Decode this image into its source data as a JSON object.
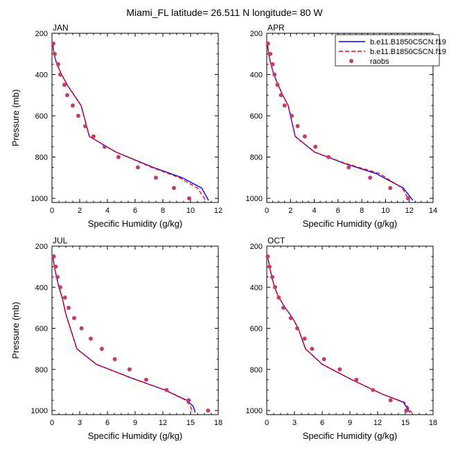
{
  "figure": {
    "title": "Miami_FL  latitude= 26.511 N longitude= 80 W"
  },
  "legend": {
    "placement": "top-right (inside APR panel)",
    "entries": [
      {
        "label": "b.e11.B1850C5CN.f19",
        "color": "#0000ff",
        "style": "solid"
      },
      {
        "label": "b.e11.B1850C5CN.f19",
        "color": "#ff0000",
        "style": "dashed"
      },
      {
        "label": "raobs",
        "color": "#c0406a",
        "style": "dot"
      }
    ]
  },
  "chart_data": [
    {
      "type": "line",
      "title": "JAN",
      "xlabel": "Specific Humidity (g/kg)",
      "ylabel": "Pressure (mb)",
      "xlim": [
        0,
        12
      ],
      "ylim": [
        1020,
        200
      ],
      "y_inverted": true,
      "xticks": [
        0,
        2,
        4,
        6,
        8,
        10,
        12
      ],
      "yticks": [
        200,
        400,
        600,
        800,
        1000
      ],
      "series": [
        {
          "name": "b.e11.B1850C5CN.f19",
          "color": "#0000ff",
          "style": "solid",
          "x": [
            0.05,
            0.15,
            0.35,
            0.7,
            1.1,
            1.6,
            2.1,
            2.7,
            4.6,
            7.3,
            9.4,
            10.8,
            11.3
          ],
          "y": [
            250,
            300,
            350,
            400,
            450,
            500,
            550,
            700,
            775,
            850,
            900,
            950,
            1010
          ]
        },
        {
          "name": "b.e11.B1850C5CN.f19",
          "color": "#ff0000",
          "style": "dashed",
          "x": [
            0.05,
            0.15,
            0.35,
            0.7,
            1.1,
            1.6,
            2.1,
            2.7,
            4.6,
            7.2,
            9.2,
            10.5,
            11.1
          ],
          "y": [
            250,
            300,
            350,
            400,
            450,
            500,
            550,
            700,
            775,
            850,
            900,
            950,
            1010
          ]
        },
        {
          "name": "raobs",
          "color": "#c0406a",
          "style": "dot",
          "x": [
            0.1,
            0.2,
            0.45,
            0.6,
            0.9,
            1.1,
            1.5,
            1.9,
            2.4,
            3.0,
            3.8,
            4.8,
            6.2,
            7.5,
            8.8,
            9.9
          ],
          "y": [
            250,
            300,
            350,
            400,
            450,
            500,
            550,
            600,
            650,
            700,
            750,
            800,
            850,
            900,
            950,
            1000
          ]
        }
      ]
    },
    {
      "type": "line",
      "title": "APR",
      "xlabel": "Specific Humidity (g/kg)",
      "ylabel": "",
      "xlim": [
        0,
        14
      ],
      "ylim": [
        1020,
        200
      ],
      "y_inverted": true,
      "xticks": [
        0,
        2,
        4,
        6,
        8,
        10,
        12,
        14
      ],
      "yticks": [
        200,
        400,
        600,
        800,
        1000
      ],
      "series": [
        {
          "name": "b.e11.B1850C5CN.f19",
          "color": "#0000ff",
          "style": "solid",
          "x": [
            0.05,
            0.15,
            0.35,
            0.6,
            0.95,
            1.35,
            1.8,
            2.4,
            4.0,
            6.5,
            9.2,
            11.5,
            12.3
          ],
          "y": [
            250,
            300,
            350,
            400,
            450,
            500,
            550,
            700,
            775,
            830,
            880,
            950,
            1010
          ]
        },
        {
          "name": "b.e11.B1850C5CN.f19",
          "color": "#ff0000",
          "style": "dashed",
          "x": [
            0.05,
            0.15,
            0.35,
            0.6,
            0.95,
            1.35,
            1.8,
            2.4,
            4.0,
            6.6,
            9.5,
            11.4,
            12.0
          ],
          "y": [
            250,
            300,
            350,
            400,
            450,
            500,
            550,
            700,
            775,
            830,
            880,
            950,
            1010
          ]
        },
        {
          "name": "raobs",
          "color": "#c0406a",
          "style": "dot",
          "x": [
            0.1,
            0.3,
            0.5,
            0.65,
            0.9,
            1.2,
            1.5,
            2.1,
            2.6,
            3.2,
            4.1,
            5.2,
            6.9,
            8.7,
            10.4,
            11.9
          ],
          "y": [
            250,
            300,
            350,
            400,
            450,
            500,
            550,
            600,
            650,
            700,
            750,
            800,
            850,
            900,
            950,
            1000
          ]
        }
      ]
    },
    {
      "type": "line",
      "title": "JUL",
      "xlabel": "Specific Humidity (g/kg)",
      "ylabel": "Pressure (mb)",
      "xlim": [
        0,
        18
      ],
      "ylim": [
        1020,
        200
      ],
      "y_inverted": true,
      "xticks": [
        0,
        3,
        6,
        9,
        12,
        15,
        18
      ],
      "yticks": [
        200,
        400,
        600,
        800,
        1000
      ],
      "series": [
        {
          "name": "b.e11.B1850C5CN.f19",
          "color": "#0000ff",
          "style": "solid",
          "x": [
            0.1,
            0.25,
            0.5,
            0.75,
            1.1,
            1.5,
            2.7,
            4.8,
            8.5,
            12.2,
            14.6,
            15.3,
            15.5
          ],
          "y": [
            250,
            300,
            350,
            400,
            450,
            530,
            700,
            775,
            840,
            900,
            950,
            980,
            1010
          ]
        },
        {
          "name": "b.e11.B1850C5CN.f19",
          "color": "#ff0000",
          "style": "dashed",
          "x": [
            0.1,
            0.25,
            0.5,
            0.75,
            1.1,
            1.5,
            2.7,
            4.8,
            8.5,
            12.2,
            14.5,
            15.0,
            15.2
          ],
          "y": [
            250,
            300,
            350,
            400,
            450,
            530,
            700,
            775,
            840,
            900,
            950,
            980,
            1010
          ]
        },
        {
          "name": "raobs",
          "color": "#c0406a",
          "style": "dot",
          "x": [
            0.2,
            0.4,
            0.6,
            0.9,
            1.4,
            1.8,
            2.4,
            3.2,
            4.2,
            5.4,
            6.8,
            8.4,
            10.2,
            12.4,
            14.8,
            16.9
          ],
          "y": [
            250,
            300,
            350,
            400,
            450,
            500,
            550,
            600,
            650,
            700,
            750,
            800,
            850,
            900,
            950,
            1000
          ]
        }
      ]
    },
    {
      "type": "line",
      "title": "OCT",
      "xlabel": "Specific Humidity (g/kg)",
      "ylabel": "",
      "xlim": [
        0,
        18
      ],
      "ylim": [
        1020,
        200
      ],
      "y_inverted": true,
      "xticks": [
        0,
        3,
        6,
        9,
        12,
        15,
        18
      ],
      "yticks": [
        200,
        400,
        600,
        800,
        1000
      ],
      "series": [
        {
          "name": "b.e11.B1850C5CN.f19",
          "color": "#0000ff",
          "style": "solid",
          "x": [
            0.1,
            0.3,
            0.55,
            0.85,
            1.3,
            2.0,
            2.8,
            3.4,
            4.2,
            6.0,
            9.2,
            12.5,
            14.8,
            15.5
          ],
          "y": [
            250,
            300,
            350,
            400,
            450,
            500,
            550,
            600,
            700,
            775,
            850,
            920,
            960,
            1010
          ]
        },
        {
          "name": "b.e11.B1850C5CN.f19",
          "color": "#ff0000",
          "style": "dashed",
          "x": [
            0.1,
            0.3,
            0.55,
            0.85,
            1.3,
            2.0,
            2.8,
            3.4,
            4.2,
            6.0,
            9.2,
            12.5,
            14.9,
            15.7
          ],
          "y": [
            250,
            300,
            350,
            400,
            450,
            500,
            550,
            600,
            700,
            775,
            850,
            920,
            960,
            1010
          ]
        },
        {
          "name": "raobs",
          "color": "#c0406a",
          "style": "dot",
          "x": [
            0.1,
            0.3,
            0.6,
            0.9,
            1.3,
            1.8,
            2.6,
            3.3,
            4.1,
            4.9,
            6.2,
            7.9,
            9.7,
            11.5,
            13.4,
            15.1
          ],
          "y": [
            250,
            300,
            350,
            400,
            450,
            500,
            550,
            600,
            650,
            700,
            750,
            800,
            850,
            900,
            950,
            1000
          ]
        }
      ]
    }
  ]
}
